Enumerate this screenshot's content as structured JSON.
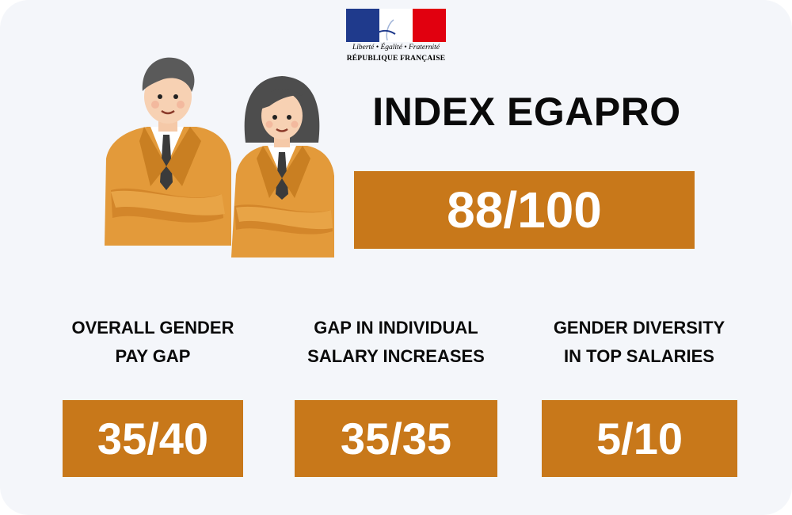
{
  "logo": {
    "motto": "Liberté • Égalité • Fraternité",
    "name": "RÉPUBLIQUE FRANÇAISE"
  },
  "header": {
    "title": "INDEX EGAPRO",
    "score": "88/100"
  },
  "metrics": [
    {
      "label_line1": "OVERALL GENDER",
      "label_line2": "PAY GAP",
      "value": "35/40"
    },
    {
      "label_line1": "GAP IN INDIVIDUAL",
      "label_line2": "SALARY INCREASES",
      "value": "35/35"
    },
    {
      "label_line1": "GENDER DIVERSITY",
      "label_line2": "IN TOP SALARIES",
      "value": "5/10"
    }
  ],
  "colors": {
    "accent": "#c8781a",
    "suit": "#e39a3a",
    "background": "#f4f6fa",
    "flag_blue": "#1f3a8c",
    "flag_red": "#e1000f"
  }
}
